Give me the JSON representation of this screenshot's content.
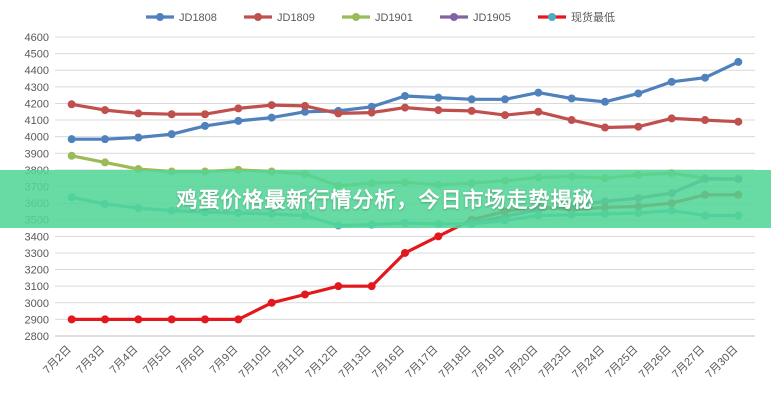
{
  "headline": "鸡蛋价格最新行情分析，今日市场走势揭秘",
  "colors": {
    "banner": "#52d696",
    "grid": "#d9d9d9",
    "axis_text": "#595959"
  },
  "chart_data": {
    "type": "line",
    "title": "",
    "xlabel": "",
    "ylabel": "",
    "ylim": [
      2800,
      4600
    ],
    "ytick_step": 100,
    "grid": true,
    "legend_position": "top",
    "categories": [
      "7月2日",
      "7月3日",
      "7月4日",
      "7月5日",
      "7月6日",
      "7月9日",
      "7月10日",
      "7月11日",
      "7月12日",
      "7月13日",
      "7月16日",
      "7月17日",
      "7月18日",
      "7月19日",
      "7月20日",
      "7月23日",
      "7月24日",
      "7月25日",
      "7月26日",
      "7月27日",
      "7月30日"
    ],
    "series": [
      {
        "name": "JD1808",
        "color": "#4f81bd",
        "values": [
          3985,
          3985,
          3995,
          4015,
          4065,
          4095,
          4115,
          4150,
          4155,
          4180,
          4245,
          4235,
          4225,
          4225,
          4265,
          4230,
          4210,
          4260,
          4330,
          4355,
          4450
        ]
      },
      {
        "name": "JD1809",
        "color": "#c0504d",
        "values": [
          4195,
          4160,
          4140,
          4135,
          4135,
          4170,
          4190,
          4185,
          4140,
          4145,
          4175,
          4160,
          4155,
          4130,
          4150,
          4100,
          4055,
          4060,
          4110,
          4100,
          4090
        ]
      },
      {
        "name": "JD1901",
        "color": "#9bbb59",
        "values": [
          3885,
          3845,
          3805,
          3790,
          3790,
          3800,
          3790,
          3775,
          3705,
          3720,
          3725,
          3710,
          3720,
          3735,
          3755,
          3760,
          3750,
          3770,
          3780,
          3750,
          3745
        ]
      },
      {
        "name": "JD1905",
        "color": "#8064a2",
        "values": [
          null,
          null,
          null,
          null,
          null,
          null,
          null,
          null,
          null,
          null,
          null,
          null,
          3480,
          3520,
          3560,
          3585,
          3610,
          3630,
          3660,
          3745,
          3745
        ]
      },
      {
        "name": "现货最低",
        "color": "#e3181d",
        "values": [
          2900,
          2900,
          2900,
          2900,
          2900,
          2900,
          3000,
          3050,
          3100,
          3100,
          3300,
          3400,
          3500,
          3550,
          3580,
          3560,
          3575,
          3580,
          3600,
          3650,
          3650
        ]
      },
      {
        "name": "JD1905b",
        "color": "#4bacc6",
        "legend": false,
        "values": [
          3635,
          3595,
          3570,
          3555,
          3545,
          3540,
          3535,
          3525,
          3465,
          3470,
          3480,
          3475,
          3475,
          3495,
          3525,
          3530,
          3535,
          3540,
          3555,
          3525,
          3525
        ]
      }
    ],
    "legend": [
      {
        "name": "JD1808",
        "color": "#4f81bd"
      },
      {
        "name": "JD1809",
        "color": "#c0504d"
      },
      {
        "name": "JD1901",
        "color": "#9bbb59"
      },
      {
        "name": "JD1905",
        "color": "#8064a2"
      },
      {
        "name": "现货最低",
        "color": "#4bacc6",
        "line_color": "#e3181d"
      }
    ]
  }
}
